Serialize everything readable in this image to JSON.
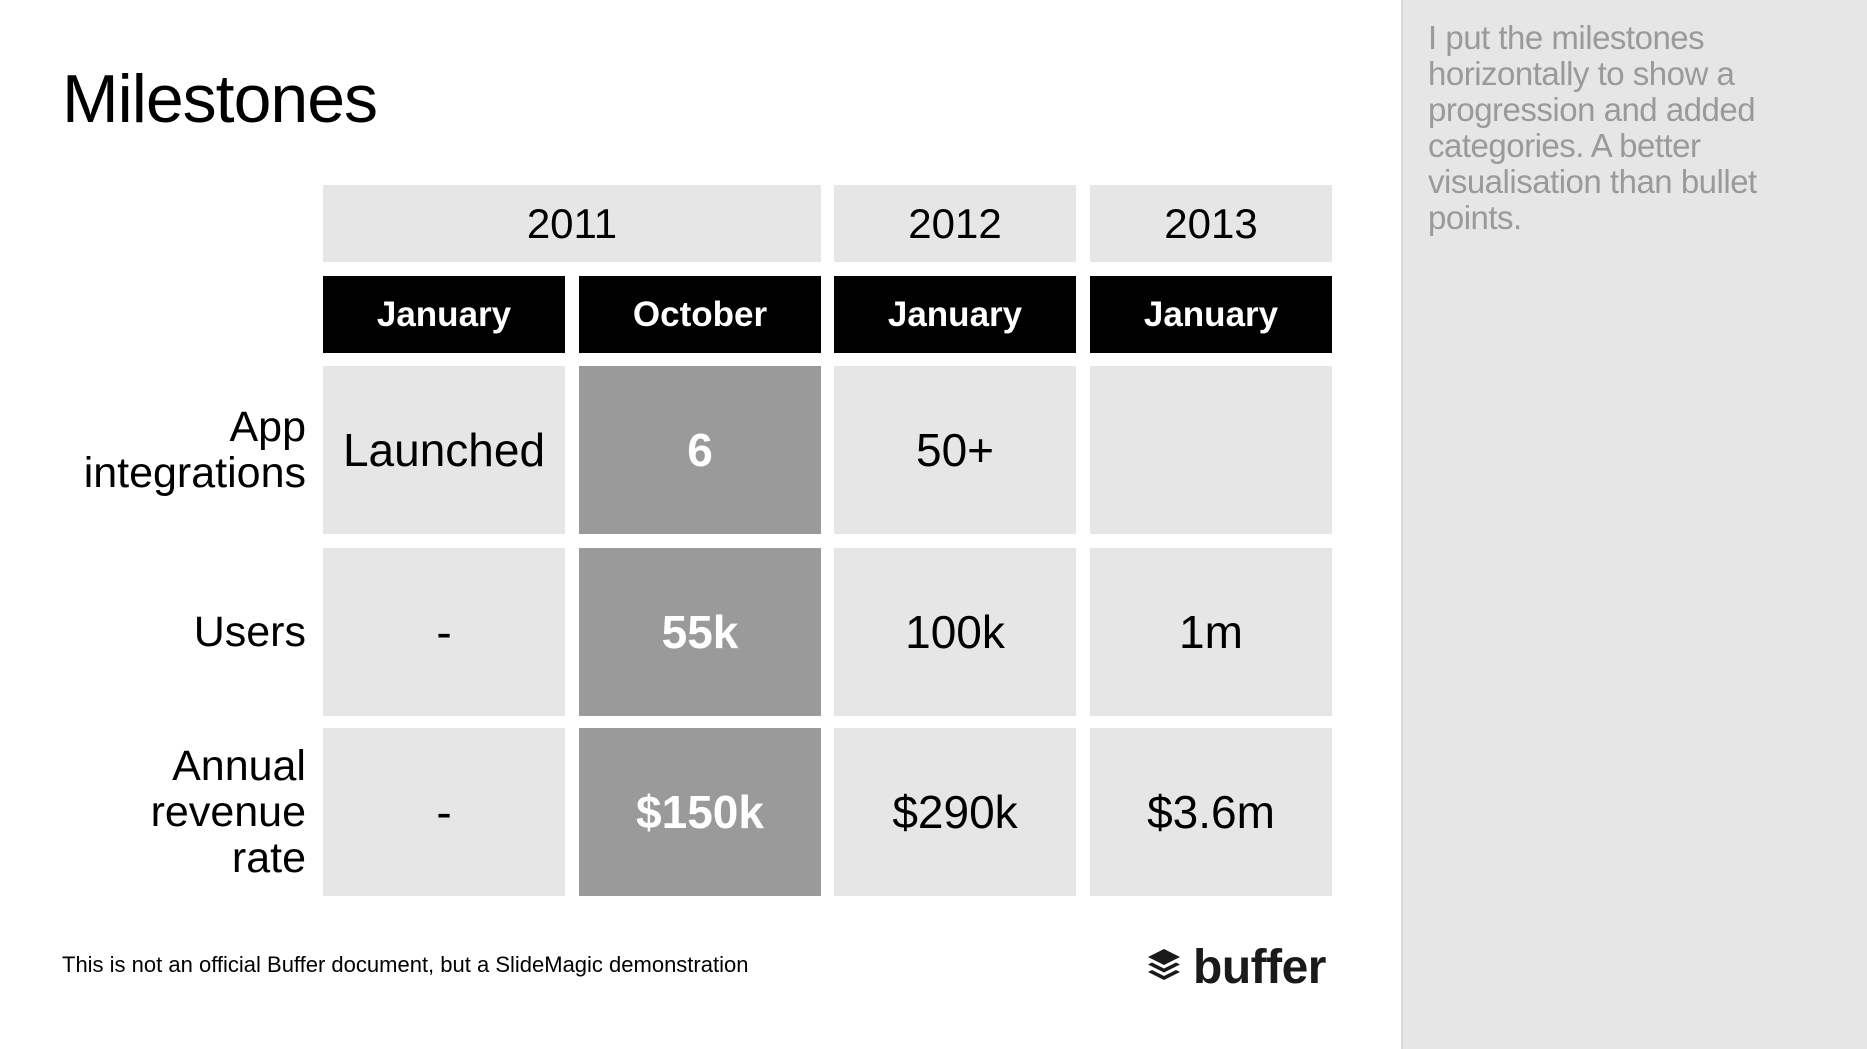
{
  "slide": {
    "title": "Milestones",
    "years": [
      "2011",
      "2012",
      "2013"
    ],
    "months": [
      "January",
      "October",
      "January",
      "January"
    ],
    "rows": [
      {
        "label_lines": [
          "App",
          "integrations"
        ],
        "cells": [
          "Launched",
          "6",
          "50+",
          ""
        ]
      },
      {
        "label_lines": [
          "Users"
        ],
        "cells": [
          "-",
          "55k",
          "100k",
          "1m"
        ]
      },
      {
        "label_lines": [
          "Annual",
          "revenue",
          "rate"
        ],
        "cells": [
          "-",
          "$150k",
          "$290k",
          "$3.6m"
        ]
      }
    ],
    "footer": "This is not an official Buffer document, but a SlideMagic demonstration",
    "logo_text": "buffer",
    "logo_icon": "buffer-stack-icon"
  },
  "notes": {
    "text": "I put the milestones horizontally to show a progression and added categories. A better visualisation than bullet points."
  },
  "colors": {
    "cell_bg": "#e6e6e6",
    "highlight_bg": "#9a9a9a",
    "header_bg": "#000000",
    "notes_text": "#9a9a9a"
  }
}
